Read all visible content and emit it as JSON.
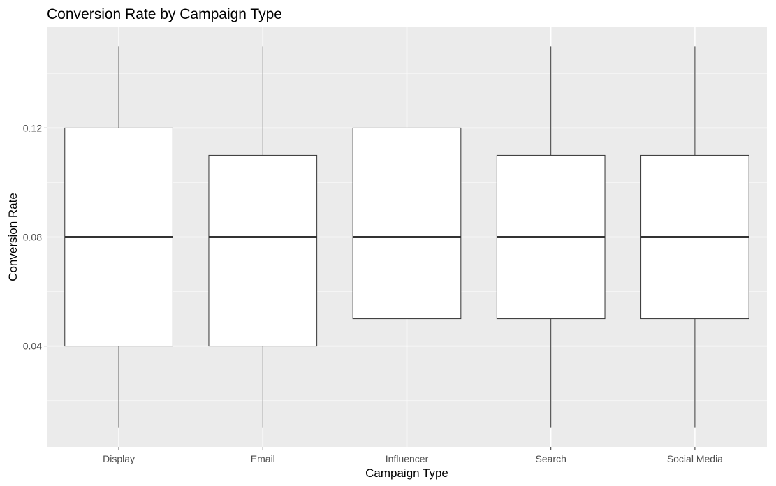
{
  "chart_data": {
    "type": "boxplot",
    "title": "Conversion Rate by Campaign Type",
    "xlabel": "Campaign Type",
    "ylabel": "Conversion Rate",
    "categories": [
      "Display",
      "Email",
      "Influencer",
      "Search",
      "Social Media"
    ],
    "boxes": [
      {
        "category": "Display",
        "min": 0.01,
        "q1": 0.04,
        "median": 0.08,
        "q3": 0.12,
        "max": 0.15
      },
      {
        "category": "Email",
        "min": 0.01,
        "q1": 0.04,
        "median": 0.08,
        "q3": 0.11,
        "max": 0.15
      },
      {
        "category": "Influencer",
        "min": 0.01,
        "q1": 0.05,
        "median": 0.08,
        "q3": 0.12,
        "max": 0.15
      },
      {
        "category": "Search",
        "min": 0.01,
        "q1": 0.05,
        "median": 0.08,
        "q3": 0.11,
        "max": 0.15
      },
      {
        "category": "Social Media",
        "min": 0.01,
        "q1": 0.05,
        "median": 0.08,
        "q3": 0.11,
        "max": 0.15
      }
    ],
    "yticks": [
      0.04,
      0.08,
      0.12
    ],
    "ytick_labels": [
      "0.04",
      "0.08",
      "0.12"
    ],
    "ylim": [
      0.003,
      0.157
    ],
    "grid": true,
    "colors": {
      "panel_background": "#ebebeb",
      "grid_major": "#ffffff",
      "grid_minor": "#f5f5f5",
      "box_fill": "#ffffff",
      "box_stroke": "#333333",
      "median": "#333333",
      "tick": "#333333",
      "tick_label": "#4d4d4d"
    }
  }
}
